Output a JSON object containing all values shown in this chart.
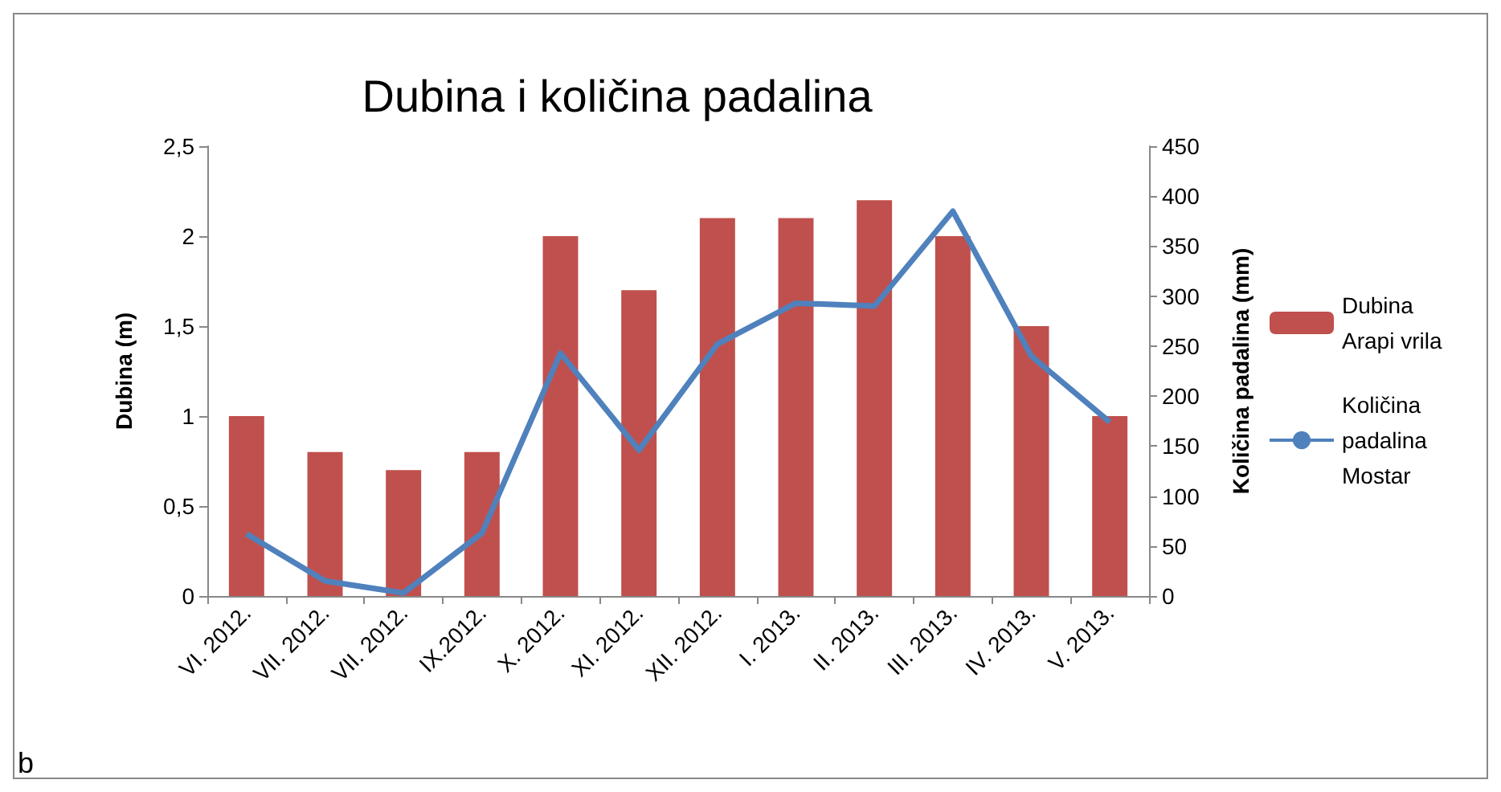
{
  "chart_data": {
    "type": "bar",
    "title": "Dubina i količina padalina",
    "ylabel": "Dubina (m)",
    "y2label": "Količina padalina (mm)",
    "categories": [
      "VI. 2012.",
      "VII. 2012.",
      "VII. 2012.",
      "IX.2012.",
      "X. 2012.",
      "XI. 2012.",
      "XII. 2012.",
      "I. 2013.",
      "II. 2013.",
      "III. 2013.",
      "IV. 2013.",
      "V. 2013."
    ],
    "series": [
      {
        "name": "Dubina Arapi vrila",
        "color": "#c0504d",
        "values": [
          1,
          0.8,
          0.7,
          0.8,
          2,
          1.7,
          2.1,
          2.1,
          2.2,
          2,
          1.5,
          1
        ]
      },
      {
        "name": "Količina padalina Mostar",
        "type": "line",
        "axis": "y2",
        "color": "#4f81bd",
        "values": [
          62,
          15,
          3,
          63,
          243,
          146,
          252,
          293,
          290,
          385,
          240,
          174
        ]
      }
    ],
    "ylim": [
      0,
      2.5
    ],
    "yticks": [
      0,
      {
        "value": 0.5,
        "label": "0,5"
      },
      1,
      {
        "value": 1.5,
        "label": "1,5"
      },
      2,
      {
        "value": 2.5,
        "label": "2,5"
      }
    ],
    "y2lim": [
      0,
      450
    ],
    "y2ticks": [
      0,
      50,
      100,
      150,
      200,
      250,
      300,
      350,
      400,
      450
    ],
    "grid": false,
    "legend": "right",
    "marker": "none",
    "annotations": [
      "b"
    ]
  }
}
